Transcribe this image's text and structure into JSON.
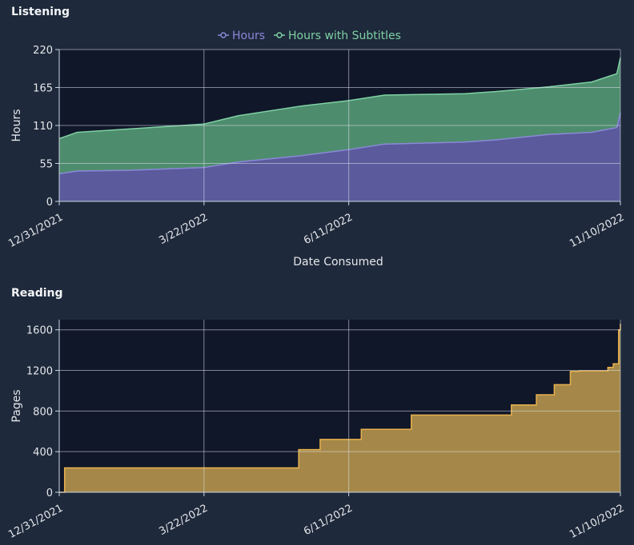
{
  "charts": {
    "listening": {
      "section_title": "Listening",
      "chart_data": {
        "type": "area",
        "title": "",
        "xlabel": "Date Consumed",
        "ylabel": "Hours",
        "x_ticks": [
          "12/31/2021",
          "3/22/2022",
          "6/11/2022",
          "11/10/2022"
        ],
        "x_range": [
          "2021-12-31",
          "2022-11-10"
        ],
        "ylim": [
          0,
          220
        ],
        "y_ticks": [
          0,
          55,
          110,
          165,
          220
        ],
        "grid": true,
        "legend_position": "top-center",
        "x": [
          "2021-12-31",
          "2022-01-10",
          "2022-02-08",
          "2022-03-22",
          "2022-04-10",
          "2022-05-15",
          "2022-06-11",
          "2022-07-01",
          "2022-08-15",
          "2022-09-01",
          "2022-10-01",
          "2022-10-25",
          "2022-11-08",
          "2022-11-10"
        ],
        "series": [
          {
            "name": "Hours",
            "color": "#8b88d9",
            "fill": "#5a5a9c",
            "values": [
              40,
              44,
              45,
              49,
              57,
              66,
              75,
              83,
              86,
              89,
              97,
              100,
              107,
              128
            ]
          },
          {
            "name": "Hours with Subtitles",
            "color": "#7fd1a3",
            "fill": "#4e8c6e",
            "values": [
              91,
              100,
              105,
              112,
              124,
              138,
              146,
              154,
              156,
              159,
              166,
              173,
              185,
              208
            ]
          }
        ]
      }
    },
    "reading": {
      "section_title": "Reading",
      "chart_data": {
        "type": "area",
        "title": "",
        "xlabel": "",
        "ylabel": "Pages",
        "x_ticks": [
          "12/31/2021",
          "3/22/2022",
          "6/11/2022",
          "11/10/2022"
        ],
        "x_range": [
          "2021-12-31",
          "2022-11-10"
        ],
        "ylim": [
          0,
          1700
        ],
        "y_ticks": [
          0,
          400,
          800,
          1200,
          1600
        ],
        "grid": true,
        "series": [
          {
            "name": "",
            "color": "#e8b14d",
            "fill": "#a58849",
            "step": true,
            "x": [
              "2021-12-31",
              "2022-01-03",
              "2022-05-14",
              "2022-05-26",
              "2022-06-18",
              "2022-07-16",
              "2022-09-10",
              "2022-09-24",
              "2022-10-04",
              "2022-10-13",
              "2022-10-18",
              "2022-11-03",
              "2022-11-06",
              "2022-11-09",
              "2022-11-10"
            ],
            "values": [
              0,
              240,
              420,
              520,
              620,
              760,
              860,
              960,
              1060,
              1190,
              1195,
              1230,
              1265,
              1600,
              1660
            ]
          }
        ]
      }
    }
  }
}
